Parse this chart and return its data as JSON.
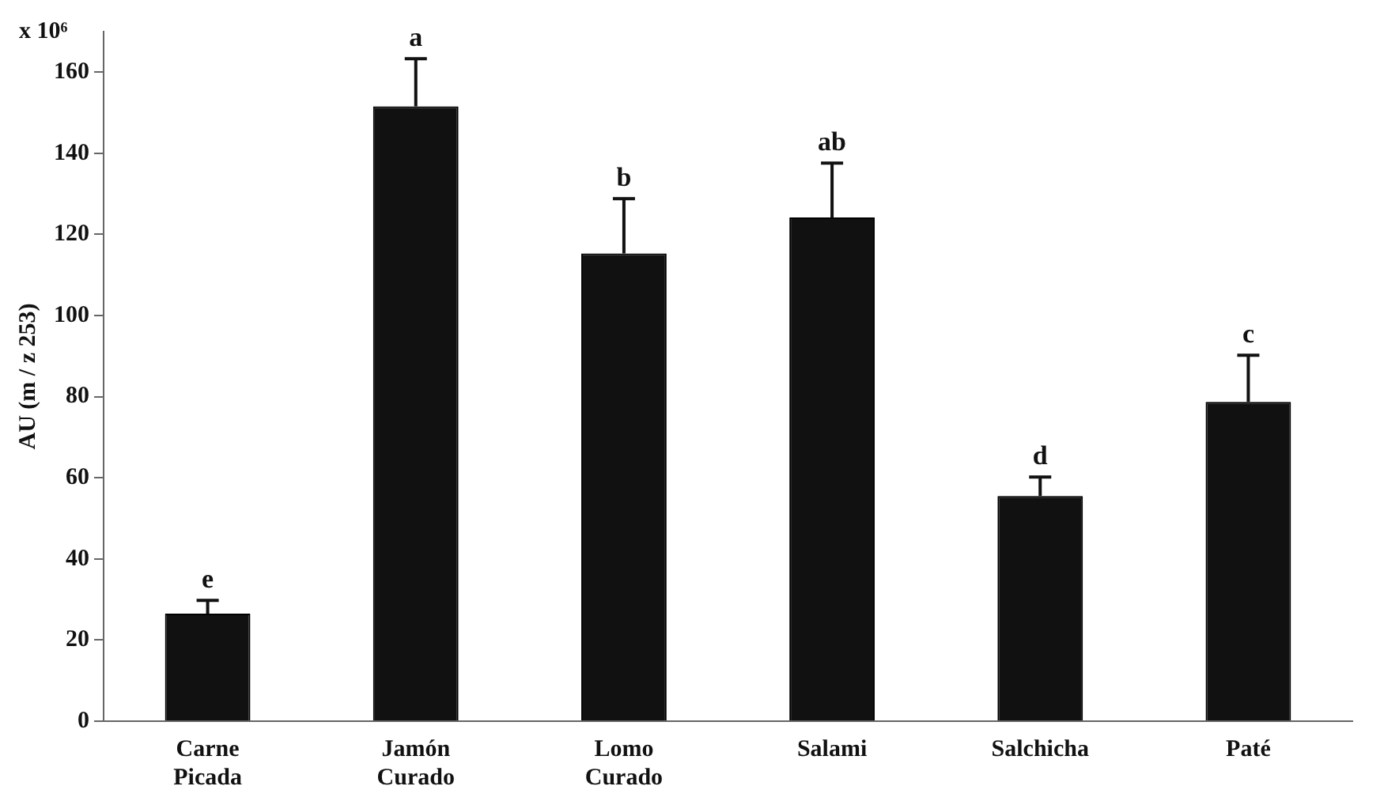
{
  "chart_data": {
    "type": "bar",
    "ylabel": "AU (m / z 253)",
    "categories": [
      "Carne Picada",
      "Jamón Curado",
      "Lomo Curado",
      "Salami",
      "Salchicha",
      "Paté"
    ],
    "values": [
      26.5,
      151.6,
      115.3,
      124.2,
      55.5,
      78.7
    ],
    "errors": [
      [
        26.5,
        29.8
      ],
      [
        151.6,
        163.3
      ],
      [
        115.3,
        128.8
      ],
      [
        124.2,
        137.6
      ],
      [
        55.5,
        60.2
      ],
      [
        78.7,
        90.2
      ]
    ],
    "color": "#111111",
    "ylim": [
      0,
      170
    ],
    "yticks": [
      0,
      20,
      40,
      60,
      80,
      100,
      120,
      140,
      160
    ],
    "grid": false,
    "legend": false,
    "annotations": [
      "x 10⁶",
      {
        "text": "e",
        "x": "Carne Picada",
        "y": 29.8
      },
      {
        "text": "a",
        "x": "Jamón Curado",
        "y": 163.3
      },
      {
        "text": "b",
        "x": "Lomo Curado",
        "y": 128.8
      },
      {
        "text": "ab",
        "x": "Salami",
        "y": 137.6
      },
      {
        "text": "d",
        "x": "Salchicha",
        "y": 60.2
      },
      {
        "text": "c",
        "x": "Paté",
        "y": 90.2
      }
    ]
  }
}
